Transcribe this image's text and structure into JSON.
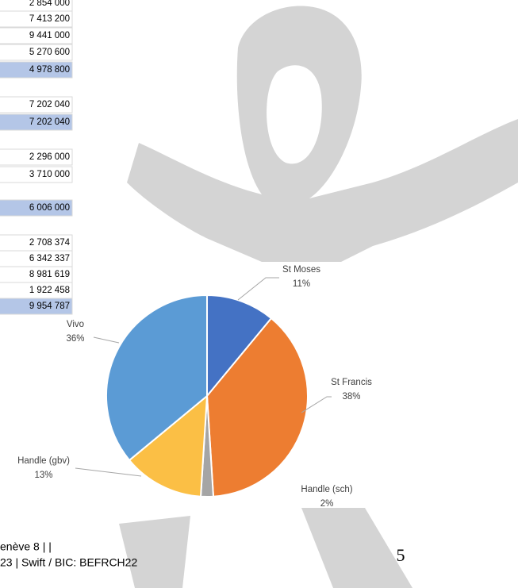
{
  "table": {
    "rows": [
      "2 854 000",
      "7 413 200",
      "9 441 000",
      "5 270 600",
      "4 978 800",
      "7 202 040",
      "7 202 040",
      "2 296 000",
      "3 710 000",
      "6 006 000",
      "2 708 374",
      "6 342 337",
      "8 981 619",
      "1 922 458",
      "9 954 787"
    ]
  },
  "chart_data": {
    "type": "pie",
    "categories": [
      "St Moses",
      "St Francis",
      "Handle (sch)",
      "Handle (gbv)",
      "Vivo"
    ],
    "values": [
      11,
      38,
      2,
      13,
      36
    ],
    "value_labels": [
      "11%",
      "38%",
      "2%",
      "13%",
      "36%"
    ],
    "colors": [
      "#4472c4",
      "#ed7d31",
      "#a5a5a5",
      "#fbbf45",
      "#5b9bd5"
    ]
  },
  "footer": {
    "line1": "enève 8 |  |",
    "line2": "23 | Swift / BIC: BEFRCH22",
    "page_number": "5"
  }
}
